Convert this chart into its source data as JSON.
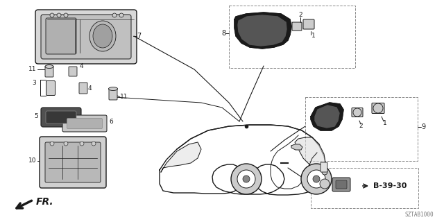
{
  "bg": "#ffffff",
  "fw": 6.4,
  "fh": 3.2,
  "dpi": 100,
  "dark": "#1a1a1a",
  "gray1": "#888888",
  "gray2": "#aaaaaa",
  "gray3": "#cccccc",
  "gray4": "#e0e0e0",
  "title_code": "SZTAB1000",
  "fr_label": "FR.",
  "b_ref": "B-39-30"
}
